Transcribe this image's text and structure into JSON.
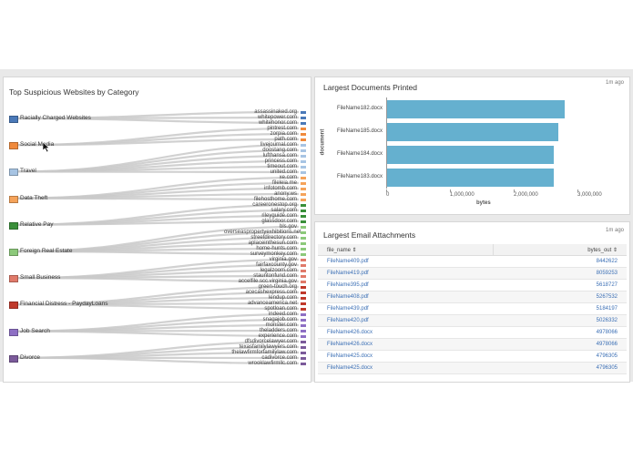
{
  "left_panel": {
    "title": "Top Suspicious Websites by Category",
    "categories": [
      {
        "label": "Racially Charged Websites",
        "color": "#4a79b8"
      },
      {
        "label": "Social Media",
        "color": "#f08a3c"
      },
      {
        "label": "Travel",
        "color": "#a7c4e3"
      },
      {
        "label": "Data Theft",
        "color": "#f5a35a"
      },
      {
        "label": "Relative Pay",
        "color": "#3a8f3a"
      },
      {
        "label": "Foreign Real Estate",
        "color": "#8cc97a"
      },
      {
        "label": "Small Business",
        "color": "#e07a6a"
      },
      {
        "label": "Financial Distress - PaydayLoans",
        "color": "#c0392b"
      },
      {
        "label": "Job Search",
        "color": "#8e6fc4"
      },
      {
        "label": "Divorce",
        "color": "#7b5a9a"
      }
    ],
    "sites": [
      "assassinaked.org",
      "whitepower.com",
      "whitehonor.com",
      "pintrest.com",
      "zorpia.com",
      "path.com",
      "livejournal.com",
      "doostang.com",
      "lufthansa.com",
      "princess.com",
      "timeout.com",
      "united.com",
      "xe.com",
      "fileleia.me",
      "infotomb.com",
      "anony.ws",
      "filehosthome.com",
      "careeronestop.org",
      "salary.com",
      "rileyguide.com",
      "glassdoor.com",
      "bls.gov",
      "overseaspropertyexhibitions.net",
      "streetdirectory.com",
      "aplaceinthesun.com",
      "home-hunts.com",
      "surveymonkey.com",
      "virginia.gov",
      "fairfaxcounty.gov",
      "legalzoom.com",
      "stauntonfund.com",
      "accelfile.scc.virginia.gov",
      "green-touch.org",
      "acecashexpress.com",
      "lendup.com",
      "advanceamerica.net",
      "spotloan.com",
      "indeed.com",
      "snagajob.com",
      "monster.com",
      "theladders.com",
      "experience.com",
      "dfsdivorcelawyer.com",
      "texasfamilylawyers.com",
      "thelawfirmforfamilylaw.com",
      "cadivorce.com",
      "wrooklawfirmllc.com"
    ]
  },
  "documents_panel": {
    "title": "Largest Documents Printed",
    "time": "1m ago"
  },
  "chart_data": {
    "type": "bar",
    "orientation": "horizontal",
    "categories": [
      "FileName182.docx",
      "FileName185.docx",
      "FileName184.docx",
      "FileName183.docx"
    ],
    "values": [
      2780000,
      2680000,
      2620000,
      2610000
    ],
    "xlabel": "bytes",
    "ylabel": "document",
    "xticks": [
      "0",
      "1,000,000",
      "2,000,000",
      "3,000,000"
    ],
    "xlim": [
      0,
      3000000
    ],
    "bar_color": "#65b0cf"
  },
  "attachments_panel": {
    "title": "Largest Email Attachments",
    "time": "1m ago",
    "columns": [
      "file_name ⇕",
      "bytes_out ⇕"
    ],
    "rows": [
      [
        "FileName409.pdf",
        "8442622"
      ],
      [
        "FileName419.pdf",
        "8059253"
      ],
      [
        "FileName395.pdf",
        "5618727"
      ],
      [
        "FileName408.pdf",
        "5267532"
      ],
      [
        "FileName439.pdf",
        "5184197"
      ],
      [
        "FileName420.pdf",
        "5026332"
      ],
      [
        "FileName426.docx",
        "4978066"
      ],
      [
        "FileName426.docx",
        "4978066"
      ],
      [
        "FileName425.docx",
        "4796305"
      ],
      [
        "FileName425.docx",
        "4796305"
      ]
    ]
  }
}
